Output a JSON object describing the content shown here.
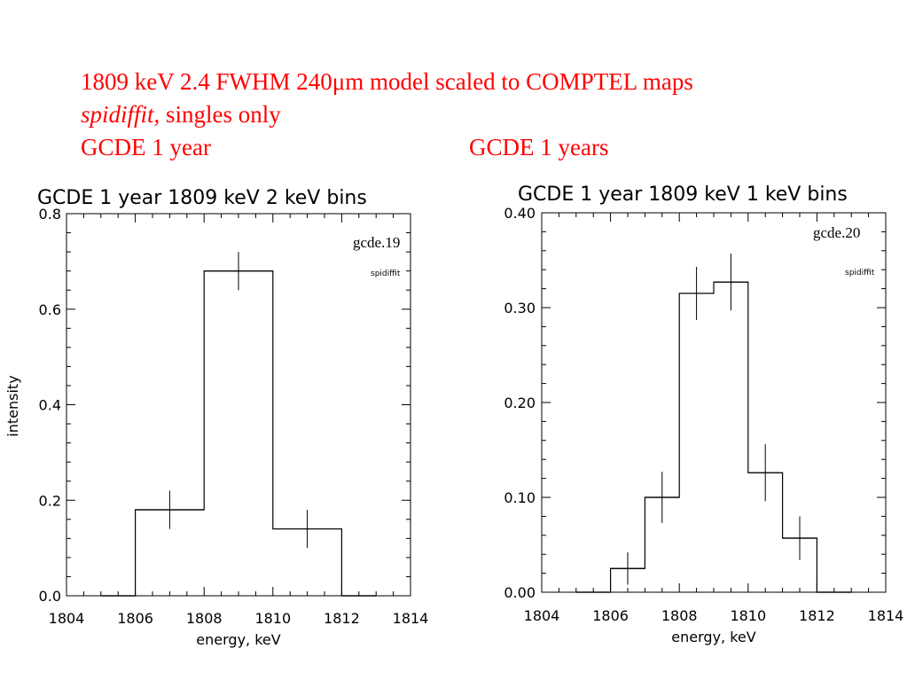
{
  "header": {
    "line1": "1809 keV 2.4 FWHM 240μm model scaled to COMPTEL maps",
    "line2_italic": "spidiffit,",
    "line2_rest": " singles only",
    "line3_left": "GCDE 1 year",
    "line3_right": "GCDE 1 years"
  },
  "chart_data": [
    {
      "type": "bar",
      "style": "step-histogram-with-error-bars",
      "title": "GCDE 1 year 1809 keV 2 keV bins",
      "xlabel": "energy, keV",
      "ylabel": "intensity",
      "xlim": [
        1804,
        1814
      ],
      "ylim": [
        0.0,
        0.8
      ],
      "xticks": [
        "1804",
        "1806",
        "1808",
        "1810",
        "1812",
        "1814"
      ],
      "yticks": [
        {
          "v": 0.0,
          "t": "0.0"
        },
        {
          "v": 0.2,
          "t": "0.2"
        },
        {
          "v": 0.4,
          "t": "0.4"
        },
        {
          "v": 0.6,
          "t": "0.6"
        },
        {
          "v": 0.8,
          "t": "0.8"
        }
      ],
      "annotation_main": "gcde.19",
      "annotation_sub": "spidiffit",
      "bins": [
        {
          "x0": 1805,
          "x1": 1806,
          "value": 0.0
        },
        {
          "x0": 1806,
          "x1": 1808,
          "value": 0.18,
          "err": 0.04
        },
        {
          "x0": 1808,
          "x1": 1810,
          "value": 0.68,
          "err": 0.04
        },
        {
          "x0": 1810,
          "x1": 1812,
          "value": 0.14,
          "err": 0.04
        },
        {
          "x0": 1812,
          "x1": 1813,
          "value": 0.0
        }
      ],
      "grid": false,
      "legend": "none"
    },
    {
      "type": "bar",
      "style": "step-histogram-with-error-bars",
      "title": "GCDE 1 year 1809 keV 1 keV bins",
      "xlabel": "energy, keV",
      "ylabel": "",
      "xlim": [
        1804,
        1814
      ],
      "ylim": [
        0.0,
        0.4
      ],
      "xticks": [
        "1804",
        "1806",
        "1808",
        "1810",
        "1812",
        "1814"
      ],
      "yticks": [
        {
          "v": 0.0,
          "t": "0.00"
        },
        {
          "v": 0.1,
          "t": "0.10"
        },
        {
          "v": 0.2,
          "t": "0.20"
        },
        {
          "v": 0.3,
          "t": "0.30"
        },
        {
          "v": 0.4,
          "t": "0.40"
        }
      ],
      "annotation_main": "gcde.20",
      "annotation_sub": "spidiffit",
      "bins": [
        {
          "x0": 1805,
          "x1": 1806,
          "value": 0.0
        },
        {
          "x0": 1806,
          "x1": 1807,
          "value": 0.025,
          "err": 0.017
        },
        {
          "x0": 1807,
          "x1": 1808,
          "value": 0.1,
          "err": 0.027
        },
        {
          "x0": 1808,
          "x1": 1809,
          "value": 0.315,
          "err": 0.028
        },
        {
          "x0": 1809,
          "x1": 1810,
          "value": 0.327,
          "err": 0.03
        },
        {
          "x0": 1810,
          "x1": 1811,
          "value": 0.126,
          "err": 0.03
        },
        {
          "x0": 1811,
          "x1": 1812,
          "value": 0.057,
          "err": 0.023
        },
        {
          "x0": 1812,
          "x1": 1813,
          "value": 0.0
        }
      ],
      "grid": false,
      "legend": "none"
    }
  ],
  "colors": {
    "header": "#ff0000",
    "plot": "#000000",
    "background": "#ffffff"
  }
}
